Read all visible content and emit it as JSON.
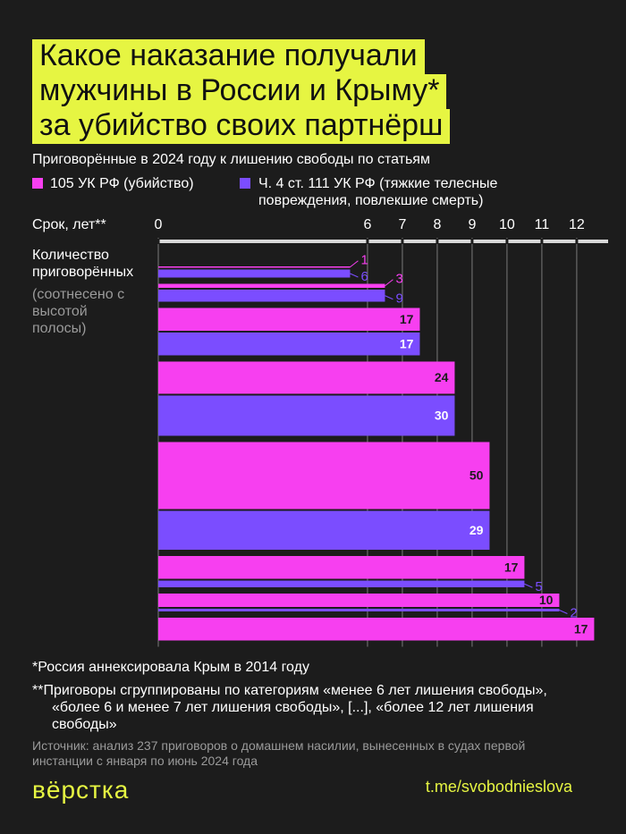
{
  "chart_data": {
    "type": "bar",
    "title": [
      "Какое наказание получали",
      "мужчины в России и Крыму*",
      "за убийство своих партнёрш"
    ],
    "subtitle": "Приговорённые в 2024 году к лишению свободы по статьям",
    "x_label": "Срок, лет**",
    "y_label": "Количество приговорённых",
    "y_note": "(соотнесено с высотой полосы)",
    "x": [
      5.5,
      6.5,
      7.5,
      8.5,
      9.5,
      10.5,
      11.5,
      12.5
    ],
    "series": [
      {
        "name": "105 УК РФ (убийство)",
        "color": "#f73ff0",
        "values": [
          1,
          3,
          17,
          24,
          50,
          17,
          10,
          17
        ]
      },
      {
        "name": "Ч. 4 ст. 111 УК РФ (тяжкие телесные повреждения, повлекшие смерть)",
        "color": "#7b4dff",
        "values": [
          6,
          9,
          17,
          30,
          29,
          5,
          2,
          null
        ]
      }
    ],
    "xlim": [
      0,
      12.9
    ],
    "xticks": [
      0,
      6,
      7,
      8,
      9,
      10,
      11,
      12
    ],
    "grid": true
  },
  "footnotes": [
    "*Россия аннексировала Крым в 2014 году",
    "**Приговоры сгруппированы по категориям «менее 6 лет лишения свободы», «более 6 и менее 7 лет лишения свободы», [...], «более 12 лет лишения свободы»"
  ],
  "source": "Источник: анализ 237 приговоров о домашнем насилии, вынесенных в судах первой инстанции с января по июнь 2024 года",
  "brand": "вёрстка",
  "link": "t.me/svobodnieslova"
}
